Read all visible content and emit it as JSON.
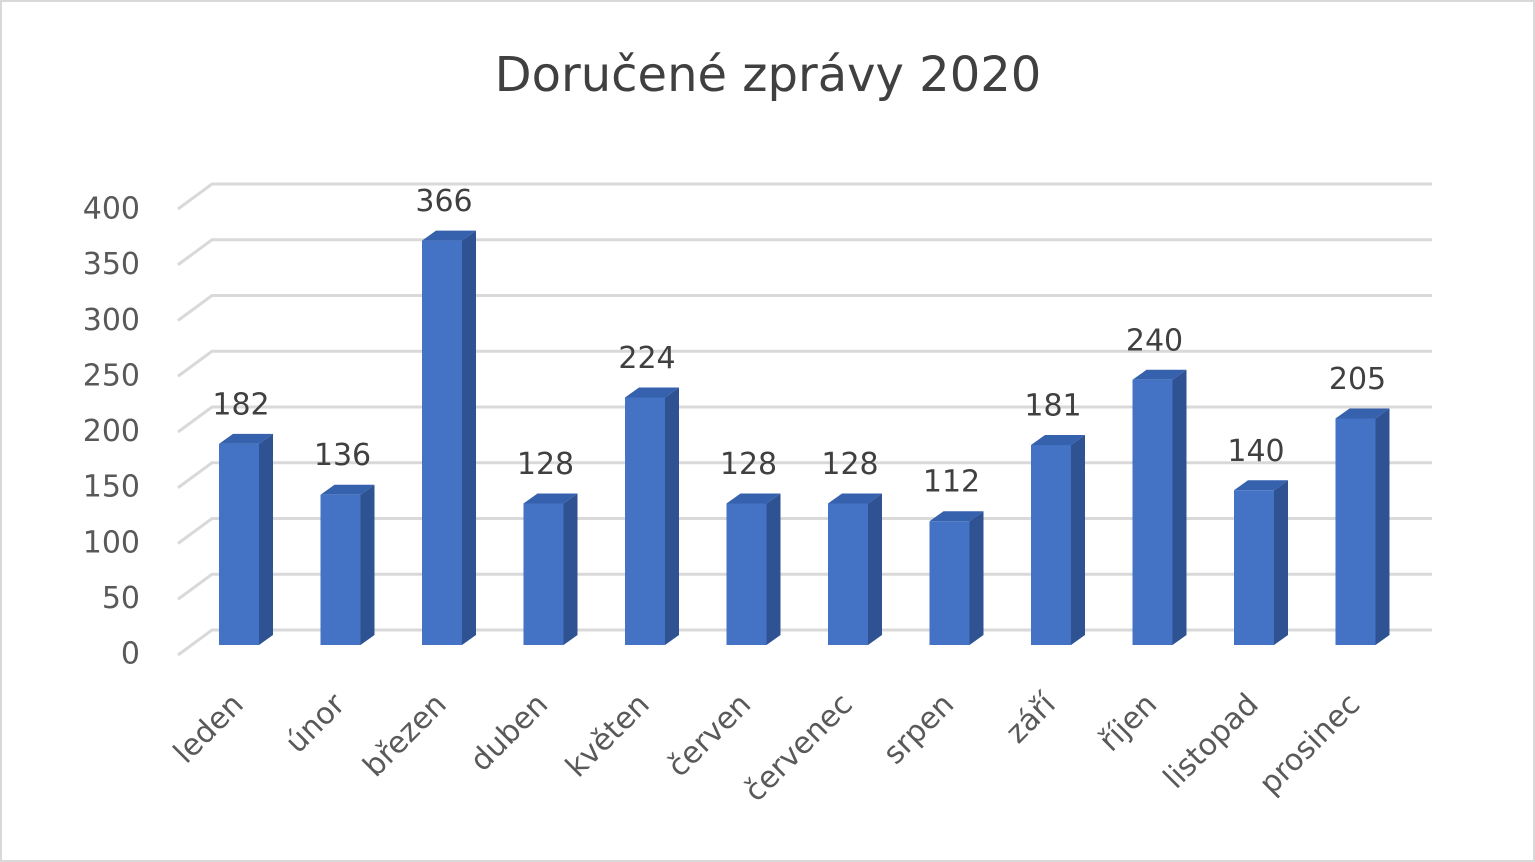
{
  "chart_data": {
    "type": "bar3d",
    "title": "Doručené zprávy 2020",
    "categories": [
      "leden",
      "únor",
      "březen",
      "duben",
      "květen",
      "červen",
      "červenec",
      "srpen",
      "září",
      "říjen",
      "listopad",
      "prosinec"
    ],
    "values": [
      182,
      136,
      366,
      128,
      224,
      128,
      128,
      112,
      181,
      240,
      140,
      205
    ],
    "color": "#4472c4",
    "ylim": [
      0,
      400
    ],
    "yticks": [
      0,
      50,
      100,
      150,
      200,
      250,
      300,
      350,
      400
    ],
    "grid": true
  }
}
